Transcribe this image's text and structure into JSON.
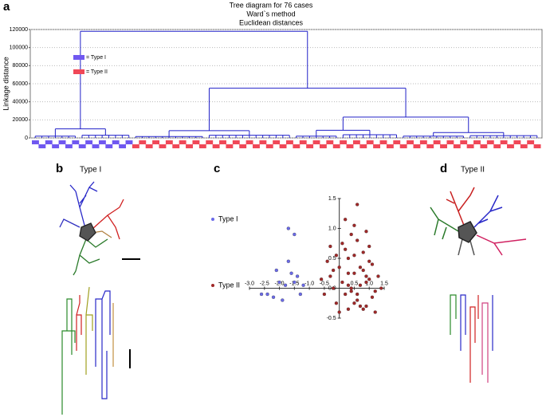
{
  "panels": {
    "a": "a",
    "b": "b",
    "c": "c",
    "d": "d",
    "type_i": "Type I",
    "type_ii": "Type II"
  },
  "chart_data": [
    {
      "type": "dendrogram",
      "title": "Tree diagram for 76 cases",
      "subtitle": "Ward`s method",
      "note": "Euclidean distances",
      "y_label": "Linkage distance",
      "ylim": [
        0,
        120000
      ],
      "yticks": [
        0,
        20000,
        40000,
        60000,
        80000,
        100000,
        120000
      ],
      "grid": true,
      "line_color": "#2020c8",
      "series": [
        {
          "name": "= Type I",
          "color": "#7058f0",
          "leaves": 15
        },
        {
          "name": "= Type II",
          "color": "#f04858",
          "leaves": 61
        }
      ],
      "tree": {
        "height": 118000,
        "children": [
          {
            "height": 10000,
            "children": [
              {
                "height": 2000,
                "leaves": 7
              },
              {
                "height": 3000,
                "leaves": 8
              }
            ]
          },
          {
            "height": 55000,
            "children": [
              {
                "height": 8000,
                "children": [
                  {
                    "height": 1500,
                    "leaves": 11
                  },
                  {
                    "height": 3000,
                    "leaves": 13
                  }
                ]
              },
              {
                "height": 23000,
                "children": [
                  {
                    "height": 8500,
                    "children": [
                      {
                        "height": 2000,
                        "leaves": 7
                      },
                      {
                        "height": 3500,
                        "leaves": 9
                      }
                    ]
                  },
                  {
                    "height": 6000,
                    "children": [
                      {
                        "height": 2000,
                        "leaves": 10
                      },
                      {
                        "height": 2500,
                        "leaves": 11
                      }
                    ]
                  }
                ]
              }
            ]
          }
        ]
      }
    },
    {
      "type": "scatter",
      "xlim": [
        -3,
        1.5
      ],
      "ylim": [
        -0.5,
        1.5
      ],
      "xticks": [
        {
          "value": -3,
          "label": "-3.0"
        },
        {
          "value": -2.5,
          "label": "-2.5"
        },
        {
          "value": -2,
          "label": "-2.0"
        },
        {
          "value": -1.5,
          "label": "-1.5"
        },
        {
          "value": -1,
          "label": "-1.0"
        },
        {
          "value": -0.5,
          "label": "-0.5"
        },
        {
          "value": 0.5,
          "label": "0.5"
        },
        {
          "value": 1,
          "label": "1.0"
        },
        {
          "value": 1.5,
          "label": "1.5"
        }
      ],
      "yticks": [
        {
          "value": -0.5,
          "label": "-0.5"
        },
        {
          "value": 0,
          "label": "0.0"
        },
        {
          "value": 0.5,
          "label": "0.5"
        },
        {
          "value": 1,
          "label": "1.0"
        },
        {
          "value": 1.5,
          "label": "1.5"
        }
      ],
      "series": [
        {
          "name": "Type I",
          "color": "#6a6ae8",
          "x": [
            -2.6,
            -2.4,
            -2.1,
            -2.0,
            -1.9,
            -1.8,
            -1.7,
            -1.6,
            -1.5,
            -1.4,
            -1.3,
            -1.5,
            -2.2,
            -1.2,
            -1.7
          ],
          "y": [
            -0.1,
            -0.1,
            0.3,
            0.1,
            -0.2,
            0.05,
            0.45,
            0.25,
            0.1,
            0.2,
            -0.1,
            0.9,
            -0.15,
            0.05,
            1.0
          ]
        },
        {
          "name": "Type II",
          "color": "#a02828",
          "x": [
            -0.6,
            -0.4,
            -0.3,
            -0.2,
            -0.1,
            0.0,
            0.1,
            0.2,
            0.3,
            0.4,
            0.5,
            0.6,
            0.7,
            0.8,
            0.9,
            1.0,
            1.1,
            1.2,
            1.3,
            -0.5,
            -0.2,
            0.1,
            0.3,
            0.5,
            0.7,
            0.9,
            1.1,
            0.2,
            0.4,
            0.6,
            0.8,
            1.0,
            0.0,
            -0.3,
            0.3,
            0.5,
            0.9,
            1.2,
            0.6,
            0.4,
            0.8,
            -0.1,
            0.2,
            1.0,
            0.7,
            0.3,
            0.5,
            0.9,
            0.6,
            1.4
          ],
          "y": [
            0.15,
            0.45,
            0.7,
            0.0,
            -0.25,
            0.35,
            0.1,
            -0.1,
            0.5,
            0.9,
            0.25,
            -0.2,
            0.05,
            0.6,
            -0.3,
            0.15,
            0.4,
            -0.05,
            0.2,
            -0.1,
            0.3,
            0.75,
            -0.35,
            0.55,
            0.35,
            0.95,
            -0.15,
            1.15,
            0.0,
            0.8,
            -0.35,
            0.45,
            -0.4,
            0.2,
            0.25,
            -0.25,
            0.1,
            -0.4,
            1.4,
            -0.05,
            0.3,
            0.55,
            0.65,
            0.7,
            -0.3,
            0.05,
            1.05,
            0.2,
            -0.1,
            0.0
          ]
        }
      ]
    }
  ]
}
